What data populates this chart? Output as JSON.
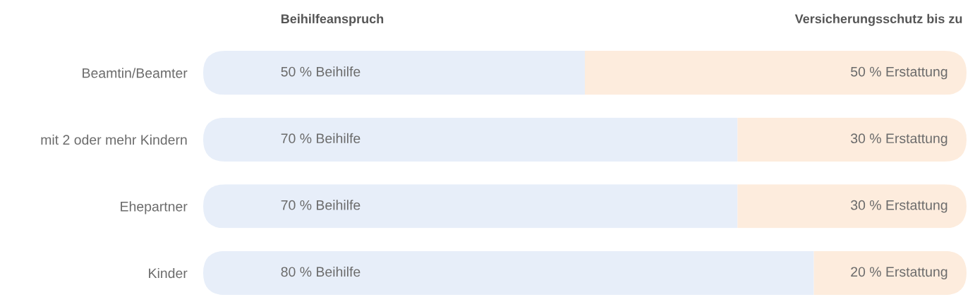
{
  "chart_data": {
    "type": "bar",
    "orientation": "horizontal",
    "stacked": true,
    "categories": [
      "Beamtin/Beamter",
      "mit 2 oder mehr Kindern",
      "Ehepartner",
      "Kinder"
    ],
    "series": [
      {
        "name": "Beihilfeanspruch",
        "color": "#e7eef9",
        "values": [
          50,
          70,
          70,
          80
        ],
        "value_labels": [
          "50 % Beihilfe",
          "70 % Beihilfe",
          "70 % Beihilfe",
          "80 % Beihilfe"
        ]
      },
      {
        "name": "Versicherungsschutz bis zu",
        "color": "#fdecdd",
        "values": [
          50,
          30,
          30,
          20
        ],
        "value_labels": [
          "50 % Erstattung",
          "30 % Erstattung",
          "30 % Erstattung",
          "20 % Erstattung"
        ]
      }
    ],
    "xlim": [
      0,
      100
    ],
    "tick_labels": "y",
    "legend": "top"
  }
}
